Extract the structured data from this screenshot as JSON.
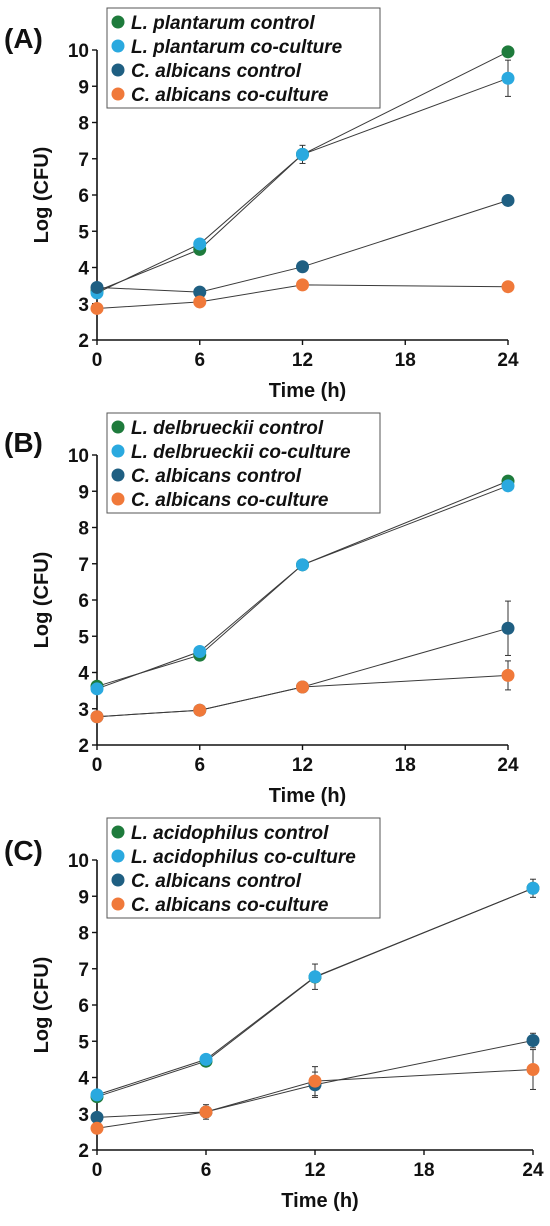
{
  "chart_data": [
    {
      "type": "line",
      "panel_label": "(A)",
      "xlabel": "Time (h)",
      "ylabel": "Log (CFU)",
      "x_ticks": [
        0,
        6,
        12,
        18,
        24
      ],
      "y_ticks": [
        2,
        3,
        4,
        5,
        6,
        7,
        8,
        9,
        10
      ],
      "xlim": [
        0,
        24
      ],
      "ylim": [
        2,
        10
      ],
      "grid": false,
      "legend_position": "top-left",
      "series": [
        {
          "name": "L. plantarum control",
          "color": "#1e7b3c",
          "x": [
            0,
            6,
            12,
            24
          ],
          "y": [
            3.35,
            4.5,
            7.12,
            9.95
          ],
          "err": [
            0,
            0,
            0,
            0
          ]
        },
        {
          "name": "L. plantarum co-culture",
          "color": "#2aa9df",
          "x": [
            0,
            6,
            12,
            24
          ],
          "y": [
            3.3,
            4.65,
            7.12,
            9.22
          ],
          "err": [
            0,
            0,
            0.25,
            0.5
          ]
        },
        {
          "name": "C. albicans control",
          "color": "#1f5f82",
          "x": [
            0,
            6,
            12,
            24
          ],
          "y": [
            3.45,
            3.32,
            4.02,
            5.85
          ],
          "err": [
            0,
            0,
            0,
            0
          ]
        },
        {
          "name": "C. albicans co-culture",
          "color": "#f0793a",
          "x": [
            0,
            6,
            12,
            24
          ],
          "y": [
            2.87,
            3.05,
            3.52,
            3.47
          ],
          "err": [
            0,
            0,
            0,
            0
          ]
        }
      ]
    },
    {
      "type": "line",
      "panel_label": "(B)",
      "xlabel": "Time (h)",
      "ylabel": "Log (CFU)",
      "x_ticks": [
        0,
        6,
        12,
        18,
        24
      ],
      "y_ticks": [
        2,
        3,
        4,
        5,
        6,
        7,
        8,
        9,
        10
      ],
      "xlim": [
        0,
        24
      ],
      "ylim": [
        2,
        10
      ],
      "grid": false,
      "legend_position": "top-left",
      "series": [
        {
          "name": "L. delbrueckii control",
          "color": "#1e7b3c",
          "x": [
            0,
            6,
            12,
            24
          ],
          "y": [
            3.62,
            4.48,
            6.97,
            9.28
          ],
          "err": [
            0,
            0,
            0,
            0
          ]
        },
        {
          "name": "L. delbrueckii co-culture",
          "color": "#2aa9df",
          "x": [
            0,
            6,
            12,
            24
          ],
          "y": [
            3.55,
            4.58,
            6.97,
            9.15
          ],
          "err": [
            0,
            0,
            0,
            0
          ]
        },
        {
          "name": "C. albicans control",
          "color": "#1f5f82",
          "x": [
            0,
            6,
            12,
            24
          ],
          "y": [
            2.78,
            2.96,
            3.6,
            5.22
          ],
          "err": [
            0,
            0,
            0,
            0.75
          ]
        },
        {
          "name": "C. albicans co-culture",
          "color": "#f0793a",
          "x": [
            0,
            6,
            12,
            24
          ],
          "y": [
            2.78,
            2.96,
            3.6,
            3.92
          ],
          "err": [
            0,
            0,
            0,
            0.4
          ]
        }
      ]
    },
    {
      "type": "line",
      "panel_label": "(C)",
      "xlabel": "Time (h)",
      "ylabel": "Log (CFU)",
      "x_ticks": [
        0,
        6,
        12,
        18,
        24
      ],
      "y_ticks": [
        2,
        3,
        4,
        5,
        6,
        7,
        8,
        9,
        10
      ],
      "xlim": [
        0,
        24
      ],
      "ylim": [
        2,
        10
      ],
      "grid": false,
      "legend_position": "top-left",
      "series": [
        {
          "name": "L. acidophilus control",
          "color": "#1e7b3c",
          "x": [
            0,
            6,
            12,
            24
          ],
          "y": [
            3.47,
            4.45,
            6.77,
            9.22
          ],
          "err": [
            0,
            0,
            0,
            0
          ]
        },
        {
          "name": "L. acidophilus co-culture",
          "color": "#2aa9df",
          "x": [
            0,
            6,
            12,
            24
          ],
          "y": [
            3.52,
            4.5,
            6.78,
            9.22
          ],
          "err": [
            0,
            0,
            0.35,
            0.25
          ]
        },
        {
          "name": "C. albicans control",
          "color": "#1f5f82",
          "x": [
            0,
            6,
            12,
            24
          ],
          "y": [
            2.9,
            3.05,
            3.8,
            5.02
          ],
          "err": [
            0,
            0.15,
            0.35,
            0.2
          ]
        },
        {
          "name": "C. albicans co-culture",
          "color": "#f0793a",
          "x": [
            0,
            6,
            12,
            24
          ],
          "y": [
            2.6,
            3.05,
            3.9,
            4.22
          ],
          "err": [
            0,
            0.2,
            0.4,
            0.55
          ]
        }
      ]
    }
  ]
}
